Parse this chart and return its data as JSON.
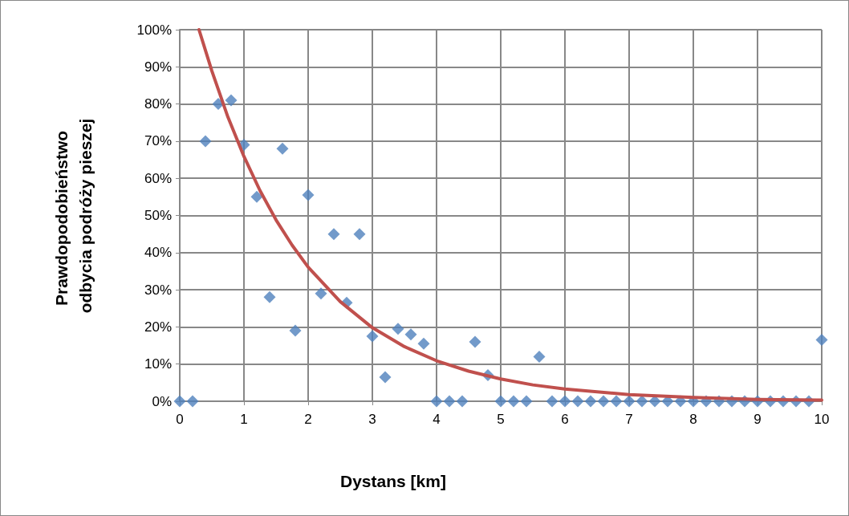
{
  "chart_data": {
    "type": "scatter",
    "xlabel": "Dystans [km]",
    "ylabel": "Prawdopodobieństwo odbycia podróży pieszej",
    "xlim": [
      0,
      10
    ],
    "xticks": [
      0,
      1,
      2,
      3,
      4,
      5,
      6,
      7,
      8,
      9,
      10
    ],
    "ylim": [
      0,
      100
    ],
    "yticks": [
      {
        "value": 0,
        "label": "0%"
      },
      {
        "value": 10,
        "label": "10%"
      },
      {
        "value": 20,
        "label": "20%"
      },
      {
        "value": 30,
        "label": "30%"
      },
      {
        "value": 40,
        "label": "40%"
      },
      {
        "value": 50,
        "label": "50%"
      },
      {
        "value": 60,
        "label": "60%"
      },
      {
        "value": 70,
        "label": "70%"
      },
      {
        "value": 80,
        "label": "80%"
      },
      {
        "value": 90,
        "label": "90%"
      },
      {
        "value": 100,
        "label": "100%"
      }
    ],
    "grid": true,
    "series": [
      {
        "marker": "diamond",
        "color": "#4f81bd",
        "x": [
          0,
          0.2,
          0.4,
          0.6,
          0.8,
          1,
          1.2,
          1.4,
          1.6,
          1.8,
          2,
          2.2,
          2.4,
          2.6,
          2.8,
          3,
          3.2,
          3.4,
          3.6,
          3.8,
          4,
          4.2,
          4.4,
          4.6,
          4.8,
          5,
          5.2,
          5.4,
          5.6,
          5.8,
          6,
          6.2,
          6.4,
          6.6,
          6.8,
          7,
          7.2,
          7.4,
          7.6,
          7.8,
          8,
          8.2,
          8.4,
          8.6,
          8.8,
          9,
          9.2,
          9.4,
          9.6,
          9.8,
          10
        ],
        "values": [
          0,
          0,
          70,
          80,
          81,
          69,
          55,
          28,
          68,
          19,
          55.5,
          29,
          45,
          26.5,
          45,
          17.5,
          6.5,
          19.5,
          18,
          15.5,
          0,
          0,
          0,
          16,
          7,
          0,
          0,
          0,
          12,
          0,
          0,
          0,
          0,
          0,
          0,
          0,
          0,
          0,
          0,
          0,
          0,
          0,
          0,
          0,
          0,
          0,
          0,
          0,
          0,
          0,
          16.5
        ]
      },
      {
        "type": "line",
        "marker": "none",
        "line_style": "solid",
        "color": "#c0504d",
        "x": [
          0.3,
          0.5,
          0.75,
          1,
          1.25,
          1.5,
          1.75,
          2,
          2.5,
          3,
          3.5,
          4,
          4.5,
          5,
          5.5,
          6,
          7,
          8,
          9,
          10
        ],
        "values": [
          100,
          88.9,
          76.5,
          65.9,
          56.7,
          48.8,
          42.0,
          36.1,
          26.8,
          19.8,
          14.7,
          10.9,
          8.1,
          6.0,
          4.4,
          3.3,
          1.8,
          1.0,
          0.5,
          0.3
        ]
      }
    ]
  }
}
